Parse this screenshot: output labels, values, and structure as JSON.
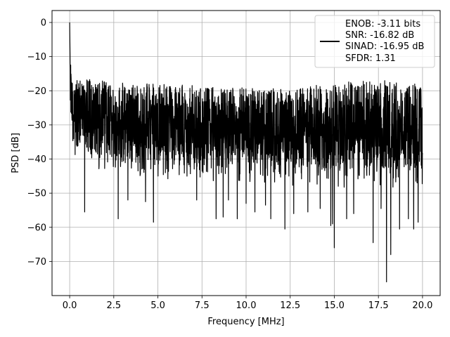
{
  "chart_data": {
    "type": "line",
    "title": "",
    "xlabel": "Frequency [MHz]",
    "ylabel": "PSD [dB]",
    "xlim": [
      -1.0,
      21.0
    ],
    "ylim": [
      -80,
      3.5
    ],
    "xticks": [
      0.0,
      2.5,
      5.0,
      7.5,
      10.0,
      12.5,
      15.0,
      17.5,
      20.0
    ],
    "xtick_labels": [
      "0.0",
      "2.5",
      "5.0",
      "7.5",
      "10.0",
      "12.5",
      "15.0",
      "17.5",
      "20.0"
    ],
    "yticks": [
      0,
      -10,
      -20,
      -30,
      -40,
      -50,
      -60,
      -70
    ],
    "ytick_labels": [
      "0",
      "−10",
      "−20",
      "−30",
      "−40",
      "−50",
      "−60",
      "−70"
    ],
    "grid": true,
    "legend_position": "top-right",
    "series": [
      {
        "name": "ENOB: -3.11 bits\nSNR: -16.82 dB\nSINAD: -16.95 dB\nSFDR: 1.31",
        "legend_lines": [
          "ENOB: -3.11 bits",
          "SNR: -16.82 dB",
          "SINAD: -16.95 dB",
          "SFDR: 1.31"
        ],
        "color": "#000000",
        "x_range": [
          0.0,
          20.0
        ],
        "upper_envelope": {
          "x": [
            0.0,
            0.1,
            0.3,
            1.0,
            2.5,
            5.0,
            7.5,
            10.0,
            12.5,
            14.5,
            15.0,
            17.5,
            18.0,
            20.0
          ],
          "y": [
            0.0,
            -15.0,
            -17.0,
            -16.5,
            -17.5,
            -18.0,
            -18.5,
            -19.0,
            -19.5,
            -18.0,
            -17.5,
            -17.0,
            -17.0,
            -18.0
          ]
        },
        "lower_envelope": {
          "x": [
            0.0,
            0.1,
            0.5,
            2.5,
            5.0,
            7.5,
            10.0,
            12.5,
            15.0,
            17.5,
            20.0
          ],
          "y": [
            -22.0,
            -38.0,
            -42.0,
            -45.0,
            -46.0,
            -47.0,
            -47.0,
            -48.0,
            -49.0,
            -49.0,
            -50.0
          ]
        },
        "spikes": [
          {
            "x": 0.85,
            "y": -55.5
          },
          {
            "x": 2.75,
            "y": -57.5
          },
          {
            "x": 3.3,
            "y": -52.0
          },
          {
            "x": 4.75,
            "y": -58.5
          },
          {
            "x": 4.3,
            "y": -52.5
          },
          {
            "x": 7.2,
            "y": -52.0
          },
          {
            "x": 8.3,
            "y": -57.5
          },
          {
            "x": 8.7,
            "y": -57.0
          },
          {
            "x": 9.0,
            "y": -52.0
          },
          {
            "x": 9.5,
            "y": -57.5
          },
          {
            "x": 10.0,
            "y": -53.0
          },
          {
            "x": 10.5,
            "y": -55.5
          },
          {
            "x": 11.1,
            "y": -53.5
          },
          {
            "x": 11.4,
            "y": -57.5
          },
          {
            "x": 12.2,
            "y": -60.5
          },
          {
            "x": 12.7,
            "y": -56.0
          },
          {
            "x": 13.5,
            "y": -55.5
          },
          {
            "x": 14.2,
            "y": -54.5
          },
          {
            "x": 14.8,
            "y": -59.5
          },
          {
            "x": 14.9,
            "y": -59.0
          },
          {
            "x": 15.0,
            "y": -66.0
          },
          {
            "x": 15.7,
            "y": -57.5
          },
          {
            "x": 16.1,
            "y": -56.0
          },
          {
            "x": 17.2,
            "y": -64.5
          },
          {
            "x": 17.65,
            "y": -54.5
          },
          {
            "x": 17.96,
            "y": -76.0
          },
          {
            "x": 18.2,
            "y": -68.0
          },
          {
            "x": 18.7,
            "y": -60.5
          },
          {
            "x": 19.2,
            "y": -57.5
          },
          {
            "x": 19.5,
            "y": -60.5
          },
          {
            "x": 19.75,
            "y": -58.5
          }
        ]
      }
    ]
  }
}
